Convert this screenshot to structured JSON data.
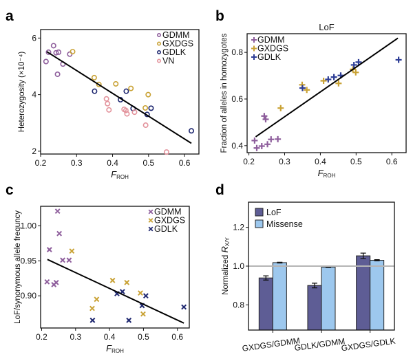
{
  "chart_data": [
    {
      "panel": "a",
      "type": "scatter",
      "title": "",
      "xlabel": "F",
      "xlabel_sub": "ROH",
      "ylabel": "Heterozygosity (×10⁻⁴)",
      "xlim": [
        0.2,
        0.64
      ],
      "ylim": [
        1.9,
        6.3
      ],
      "xticks": [
        0.2,
        0.3,
        0.4,
        0.5,
        0.6
      ],
      "xtick_labels": [
        "0.2",
        "0.3",
        "0.4",
        "0.5",
        "0.6"
      ],
      "yticks": [
        2,
        4,
        6
      ],
      "ytick_labels": [
        "2",
        "4",
        "6"
      ],
      "marker": "circle-open",
      "legend_position": "top-right",
      "series": [
        {
          "name": "GDMM",
          "color": "#8e5e9c",
          "points": [
            [
              0.215,
              5.17
            ],
            [
              0.222,
              5.5
            ],
            [
              0.236,
              5.73
            ],
            [
              0.243,
              5.48
            ],
            [
              0.25,
              5.5
            ],
            [
              0.247,
              4.72
            ],
            [
              0.262,
              5.08
            ],
            [
              0.281,
              5.43
            ]
          ]
        },
        {
          "name": "GXDGS",
          "color": "#c9a235",
          "points": [
            [
              0.289,
              5.52
            ],
            [
              0.349,
              4.6
            ],
            [
              0.362,
              4.36
            ],
            [
              0.409,
              4.38
            ],
            [
              0.451,
              4.22
            ],
            [
              0.491,
              3.53
            ],
            [
              0.499,
              4.0
            ]
          ]
        },
        {
          "name": "GDLK",
          "color": "#1f2870",
          "points": [
            [
              0.35,
              4.12
            ],
            [
              0.422,
              3.82
            ],
            [
              0.438,
              4.12
            ],
            [
              0.457,
              3.51
            ],
            [
              0.496,
              3.3
            ],
            [
              0.507,
              3.52
            ],
            [
              0.619,
              2.72
            ]
          ]
        },
        {
          "name": "VN",
          "color": "#e3939c",
          "points": [
            [
              0.383,
              3.85
            ],
            [
              0.386,
              3.68
            ],
            [
              0.39,
              3.46
            ],
            [
              0.432,
              3.48
            ],
            [
              0.437,
              3.44
            ],
            [
              0.44,
              3.32
            ],
            [
              0.461,
              3.38
            ],
            [
              0.492,
              2.92
            ],
            [
              0.55,
              1.97
            ]
          ]
        }
      ],
      "fit_line": [
        [
          0.217,
          5.52
        ],
        [
          0.619,
          2.28
        ]
      ]
    },
    {
      "panel": "b",
      "type": "scatter",
      "title": "LoF",
      "xlabel": "F",
      "xlabel_sub": "ROH",
      "ylabel": "Fraction of alleles in homozygotes",
      "xlim": [
        0.195,
        0.64
      ],
      "ylim": [
        0.37,
        0.88
      ],
      "xticks": [
        0.2,
        0.3,
        0.4,
        0.5,
        0.6
      ],
      "xtick_labels": [
        "0.2",
        "0.3",
        "0.4",
        "0.5",
        "0.6"
      ],
      "yticks": [
        0.4,
        0.6,
        0.8
      ],
      "ytick_labels": [
        "0.4",
        "0.6",
        "0.8"
      ],
      "marker": "plus",
      "legend_position": "top-left",
      "series": [
        {
          "name": "GDMM",
          "color": "#8e5e9c",
          "points": [
            [
              0.216,
              0.422
            ],
            [
              0.222,
              0.39
            ],
            [
              0.236,
              0.398
            ],
            [
              0.243,
              0.527
            ],
            [
              0.247,
              0.513
            ],
            [
              0.252,
              0.406
            ],
            [
              0.262,
              0.427
            ],
            [
              0.281,
              0.428
            ]
          ]
        },
        {
          "name": "GXDGS",
          "color": "#c9a235",
          "points": [
            [
              0.289,
              0.561
            ],
            [
              0.349,
              0.661
            ],
            [
              0.362,
              0.639
            ],
            [
              0.409,
              0.678
            ],
            [
              0.451,
              0.667
            ],
            [
              0.491,
              0.727
            ],
            [
              0.499,
              0.714
            ]
          ]
        },
        {
          "name": "GDLK",
          "color": "#2e3e96",
          "points": [
            [
              0.35,
              0.647
            ],
            [
              0.422,
              0.684
            ],
            [
              0.438,
              0.694
            ],
            [
              0.457,
              0.701
            ],
            [
              0.494,
              0.746
            ],
            [
              0.507,
              0.758
            ],
            [
              0.619,
              0.768
            ]
          ]
        }
      ],
      "fit_line": [
        [
          0.219,
          0.438
        ],
        [
          0.617,
          0.861
        ]
      ]
    },
    {
      "panel": "c",
      "type": "scatter",
      "title": "",
      "xlabel": "F",
      "xlabel_sub": "ROH",
      "ylabel": "LoF/synonymous allele frequncy",
      "xlim": [
        0.197,
        0.635
      ],
      "ylim": [
        0.854,
        1.028
      ],
      "xticks": [
        0.2,
        0.3,
        0.4,
        0.5,
        0.6
      ],
      "xtick_labels": [
        "0.2",
        "0.3",
        "0.4",
        "0.5",
        "0.6"
      ],
      "yticks": [
        0.9,
        0.95,
        1.0
      ],
      "ytick_labels": [
        "0.90",
        "0.95",
        "1.00"
      ],
      "marker": "x",
      "legend_position": "top-right",
      "series": [
        {
          "name": "GDMM",
          "color": "#8e5e9c",
          "points": [
            [
              0.216,
              0.92
            ],
            [
              0.223,
              0.966
            ],
            [
              0.236,
              0.916
            ],
            [
              0.243,
              0.919
            ],
            [
              0.247,
              1.021
            ],
            [
              0.252,
              0.989
            ],
            [
              0.262,
              0.951
            ],
            [
              0.281,
              0.951
            ]
          ]
        },
        {
          "name": "GXDGS",
          "color": "#c9a235",
          "points": [
            [
              0.289,
              0.964
            ],
            [
              0.349,
              0.882
            ],
            [
              0.362,
              0.895
            ],
            [
              0.409,
              0.922
            ],
            [
              0.451,
              0.919
            ],
            [
              0.491,
              0.904
            ],
            [
              0.499,
              0.874
            ]
          ]
        },
        {
          "name": "GDLK",
          "color": "#1f2870",
          "points": [
            [
              0.35,
              0.865
            ],
            [
              0.422,
              0.903
            ],
            [
              0.438,
              0.906
            ],
            [
              0.457,
              0.865
            ],
            [
              0.496,
              0.886
            ],
            [
              0.507,
              0.9
            ],
            [
              0.619,
              0.884
            ]
          ]
        }
      ],
      "fit_line": [
        [
          0.217,
          0.952
        ],
        [
          0.619,
          0.861
        ]
      ]
    },
    {
      "panel": "d",
      "type": "bar",
      "title": "",
      "xlabel": "",
      "ylabel": "Normalized R",
      "ylabel_sub": "X/Y",
      "ylim": [
        0.67,
        1.33
      ],
      "yticks": [
        0.8,
        1.0,
        1.2
      ],
      "ytick_labels": [
        "0.8",
        "1.0",
        "1.2"
      ],
      "reference_line": 1.0,
      "legend_position": "top-left",
      "categories": [
        "GXDGS/GDMM",
        "GDLK/GDMM",
        "GXDGS/GDLK"
      ],
      "series": [
        {
          "name": "LoF",
          "color": "#5e5d95",
          "values": [
            0.939,
            0.9,
            1.053
          ],
          "errors": [
            0.011,
            0.012,
            0.014
          ]
        },
        {
          "name": "Missense",
          "color": "#9dc8ee",
          "values": [
            1.018,
            0.995,
            1.03
          ],
          "errors": [
            0.002,
            0.002,
            0.003
          ]
        }
      ]
    }
  ],
  "panel_letters": [
    "a",
    "b",
    "c",
    "d"
  ]
}
